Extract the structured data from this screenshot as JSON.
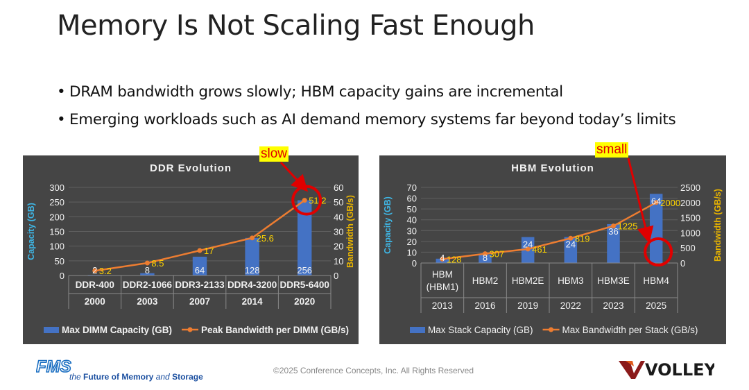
{
  "slide": {
    "title": "Memory Is Not Scaling Fast Enough",
    "bullets": [
      "DRAM bandwidth grows slowly; HBM capacity gains are incremental",
      "Emerging workloads such as AI demand memory systems far beyond today’s limits"
    ],
    "callouts": {
      "ddr": "slow",
      "hbm": "small"
    },
    "footer": "©2025 Conference Concepts, Inc. All Rights Reserved",
    "logos": {
      "fms_wordmark": "FMS",
      "fms_tagline_prefix": "the ",
      "fms_tagline_bold": "Future of Memory",
      "fms_tagline_mid": " and ",
      "fms_tagline_end": "Storage",
      "volley": "VOLLEY"
    },
    "colors": {
      "panel_bg": "#454545",
      "bar": "#4472c4",
      "line": "#ed7d31",
      "line_label": "#ffd400",
      "left_axis_label": "#3fb7e6",
      "right_axis_label": "#e8b400",
      "highlight": "#e00000"
    }
  },
  "chart_data": [
    {
      "type": "bar",
      "title": "DDR Evolution",
      "categories": [
        "DDR-400",
        "DDR2-1066",
        "DDR3-2133",
        "DDR4-3200",
        "DDR5-6400"
      ],
      "years": [
        "2000",
        "2003",
        "2007",
        "2014",
        "2020"
      ],
      "ylabel": "Capacity (GB)",
      "y2label": "Bandwidth (GB/s)",
      "ylim": [
        0,
        300
      ],
      "y2lim": [
        0,
        60
      ],
      "yticks": [
        0,
        50,
        100,
        150,
        200,
        250,
        300
      ],
      "y2ticks": [
        0,
        10,
        20,
        30,
        40,
        50,
        60
      ],
      "grid": true,
      "legend_position": "bottom",
      "series": [
        {
          "name": "Max DIMM Capacity (GB)",
          "kind": "bar",
          "axis": "left",
          "values": [
            2,
            8,
            64,
            128,
            256
          ],
          "labels": [
            "2",
            "8",
            "64",
            "128",
            "256"
          ]
        },
        {
          "name": "Peak Bandwidth per DIMM (GB/s)",
          "kind": "line",
          "axis": "right",
          "values": [
            3.2,
            8.5,
            17,
            25.6,
            51.2
          ],
          "labels": [
            "3.2",
            "8.5",
            "17",
            "25.6",
            "51.2"
          ]
        }
      ],
      "highlight": {
        "series": 1,
        "index": 4
      }
    },
    {
      "type": "bar",
      "title": "HBM Evolution",
      "categories": [
        "HBM (HBM1)",
        "HBM2",
        "HBM2E",
        "HBM3",
        "HBM3E",
        "HBM4"
      ],
      "years": [
        "2013",
        "2016",
        "2019",
        "2022",
        "2023",
        "2025"
      ],
      "ylabel": "Capacity (GB)",
      "y2label": "Bandwidth (GB/s)",
      "ylim": [
        0,
        70
      ],
      "y2lim": [
        0,
        2500
      ],
      "yticks": [
        0,
        10,
        20,
        30,
        40,
        50,
        60,
        70
      ],
      "y2ticks": [
        0,
        500,
        1000,
        1500,
        2000,
        2500
      ],
      "grid": true,
      "legend_position": "bottom",
      "series": [
        {
          "name": "Max Stack Capacity (GB)",
          "kind": "bar",
          "axis": "left",
          "values": [
            4,
            8,
            24,
            24,
            36,
            64
          ],
          "labels": [
            "4",
            "8",
            "24",
            "24",
            "36",
            "64"
          ]
        },
        {
          "name": "Max Bandwidth per Stack (GB/s)",
          "kind": "line",
          "axis": "right",
          "values": [
            128,
            307,
            461,
            819,
            1225,
            2000
          ],
          "labels": [
            "128",
            "307",
            "461",
            "819",
            "1225",
            "2000"
          ]
        }
      ],
      "highlight": {
        "series": 0,
        "index": 5
      }
    }
  ]
}
